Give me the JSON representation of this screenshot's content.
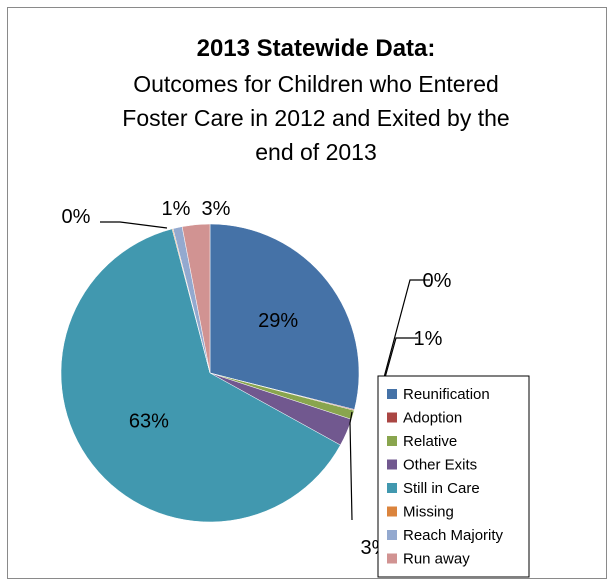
{
  "chart_data": {
    "type": "pie",
    "title": "2013 Statewide Data:",
    "subtitle": [
      "Outcomes for Children who Entered",
      "Foster Care in 2012 and Exited by the",
      "end of 2013"
    ],
    "slices": [
      {
        "name": "Reunification",
        "value": 29,
        "label": "29%",
        "color": "#4572A7"
      },
      {
        "name": "Adoption",
        "value": 0.1,
        "label": "0%",
        "color": "#AA4643"
      },
      {
        "name": "Relative",
        "value": 1,
        "label": "1%",
        "color": "#89A54E"
      },
      {
        "name": "Other Exits",
        "value": 3,
        "label": "3%",
        "color": "#71588F"
      },
      {
        "name": "Still in Care",
        "value": 63,
        "label": "63%",
        "color": "#4198AF"
      },
      {
        "name": "Missing",
        "value": 0.1,
        "label": "0%",
        "color": "#DB843D"
      },
      {
        "name": "Reach Majority",
        "value": 1,
        "label": "1%",
        "color": "#93A9CF"
      },
      {
        "name": "Run away",
        "value": 3,
        "label": "3%",
        "color": "#D19392"
      }
    ],
    "legend_position": "bottom-right"
  }
}
